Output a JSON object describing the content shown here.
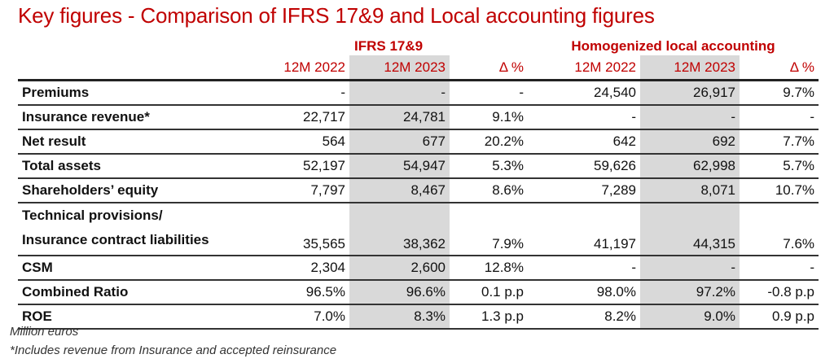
{
  "title": "Key figures - Comparison of IFRS 17&9 and Local accounting figures",
  "groups": {
    "ifrs": "IFRS 17&9",
    "local": "Homogenized local accounting"
  },
  "columns": [
    "12M 2022",
    "12M 2023",
    "Δ %",
    "12M 2022",
    "12M 2023",
    "Δ %"
  ],
  "rows": [
    {
      "label": "Premiums",
      "values": [
        "-",
        "-",
        "-",
        "24,540",
        "26,917",
        "9.7%"
      ]
    },
    {
      "label": "Insurance revenue*",
      "values": [
        "22,717",
        "24,781",
        "9.1%",
        "-",
        "-",
        "-"
      ]
    },
    {
      "label": "Net result",
      "values": [
        "564",
        "677",
        "20.2%",
        "642",
        "692",
        "7.7%"
      ]
    },
    {
      "label": "Total assets",
      "values": [
        "52,197",
        "54,947",
        "5.3%",
        "59,626",
        "62,998",
        "5.7%"
      ]
    },
    {
      "label": "Shareholders’ equity",
      "values": [
        "7,797",
        "8,467",
        "8.6%",
        "7,289",
        "8,071",
        "10.7%"
      ]
    },
    {
      "label": "Technical provisions/",
      "label2": "Insurance contract liabilities",
      "values": [
        "35,565",
        "38,362",
        "7.9%",
        "41,197",
        "44,315",
        "7.6%"
      ]
    },
    {
      "label": "CSM",
      "values": [
        "2,304",
        "2,600",
        "12.8%",
        "-",
        "-",
        "-"
      ]
    },
    {
      "label": "Combined Ratio",
      "values": [
        "96.5%",
        "96.6%",
        "0.1 p.p",
        "98.0%",
        "97.2%",
        "-0.8 p.p"
      ]
    },
    {
      "label": "ROE",
      "values": [
        "7.0%",
        "8.3%",
        "1.3 p.p",
        "8.2%",
        "9.0%",
        "0.9 p.p"
      ]
    }
  ],
  "footnotes": [
    "Million euros",
    "*Includes revenue from Insurance and accepted reinsurance"
  ],
  "colors": {
    "accent": "#c00000",
    "highlight_column": "#d9d9d9"
  }
}
